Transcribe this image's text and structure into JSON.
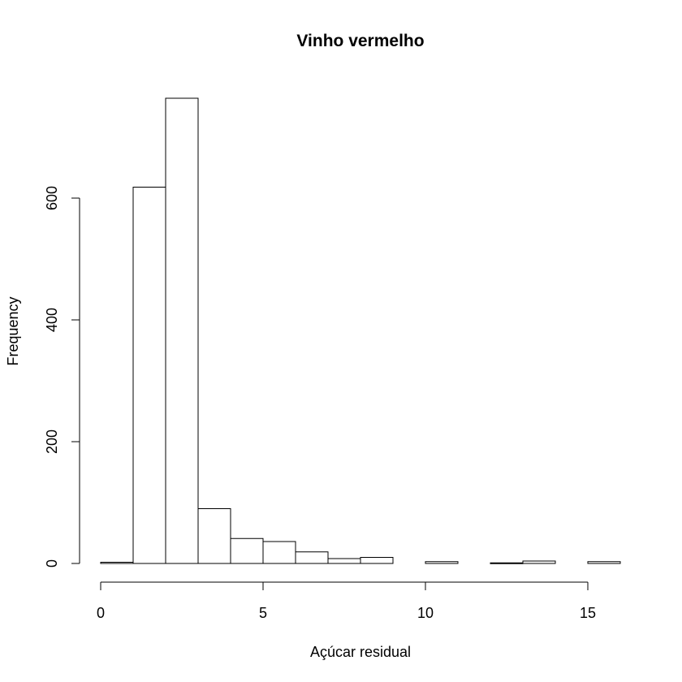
{
  "chart_data": {
    "type": "bar",
    "title": "Vinho vermelho",
    "xlabel": "Açúcar residual",
    "ylabel": "Frequency",
    "bins": [
      {
        "x0": 0,
        "x1": 1,
        "count": 2
      },
      {
        "x0": 1,
        "x1": 2,
        "count": 618
      },
      {
        "x0": 2,
        "x1": 3,
        "count": 764
      },
      {
        "x0": 3,
        "x1": 4,
        "count": 90
      },
      {
        "x0": 4,
        "x1": 5,
        "count": 41
      },
      {
        "x0": 5,
        "x1": 6,
        "count": 36
      },
      {
        "x0": 6,
        "x1": 7,
        "count": 19
      },
      {
        "x0": 7,
        "x1": 8,
        "count": 8
      },
      {
        "x0": 8,
        "x1": 9,
        "count": 10
      },
      {
        "x0": 9,
        "x1": 10,
        "count": 0
      },
      {
        "x0": 10,
        "x1": 11,
        "count": 3
      },
      {
        "x0": 11,
        "x1": 12,
        "count": 0
      },
      {
        "x0": 12,
        "x1": 13,
        "count": 1
      },
      {
        "x0": 13,
        "x1": 14,
        "count": 4
      },
      {
        "x0": 14,
        "x1": 15,
        "count": 0
      },
      {
        "x0": 15,
        "x1": 16,
        "count": 3
      }
    ],
    "xlim": [
      0,
      16
    ],
    "ylim": [
      0,
      764
    ],
    "x_ticks": [
      "0",
      "5",
      "10",
      "15"
    ],
    "y_ticks": [
      "0",
      "200",
      "400",
      "600"
    ],
    "grid": false,
    "legend": "none"
  }
}
